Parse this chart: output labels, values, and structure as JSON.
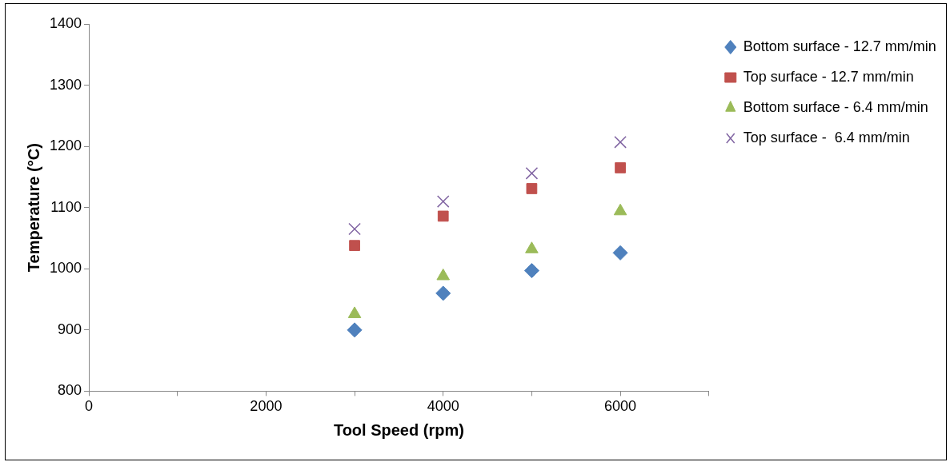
{
  "chart_data": {
    "type": "scatter",
    "xlabel": "Tool Speed (rpm)",
    "ylabel": "Temperature (°C)",
    "xlim": [
      0,
      7000
    ],
    "xticks": [
      0,
      {
        "value": 1000,
        "label": null
      },
      2000,
      {
        "value": 3000,
        "label": null
      },
      4000,
      {
        "value": 5000,
        "label": null
      },
      6000,
      {
        "value": 7000,
        "label": null
      }
    ],
    "ylim": [
      800,
      1400
    ],
    "yticks": [
      800,
      900,
      1000,
      1100,
      1200,
      1300,
      1400
    ],
    "grid": false,
    "legend": "right",
    "series": [
      {
        "name": "Bottom surface - 12.7 mm/min",
        "color": "#4f81bd",
        "marker": "diamond",
        "x": [
          3000,
          4000,
          5000,
          6000
        ],
        "values": [
          900,
          960,
          997,
          1026
        ]
      },
      {
        "name": "Top surface - 12.7 mm/min",
        "color": "#c0504d",
        "marker": "square",
        "x": [
          3000,
          4000,
          5000,
          6000
        ],
        "values": [
          1038,
          1086,
          1131,
          1165
        ]
      },
      {
        "name": "Bottom surface - 6.4 mm/min",
        "color": "#9bbb59",
        "marker": "triangle",
        "x": [
          3000,
          4000,
          5000,
          6000
        ],
        "values": [
          926,
          988,
          1032,
          1094
        ]
      },
      {
        "name": "Top surface -  6.4 mm/min",
        "color": "#8064a2",
        "marker": "cross",
        "x": [
          3000,
          4000,
          5000,
          6000
        ],
        "values": [
          1065,
          1110,
          1156,
          1207
        ]
      }
    ]
  }
}
